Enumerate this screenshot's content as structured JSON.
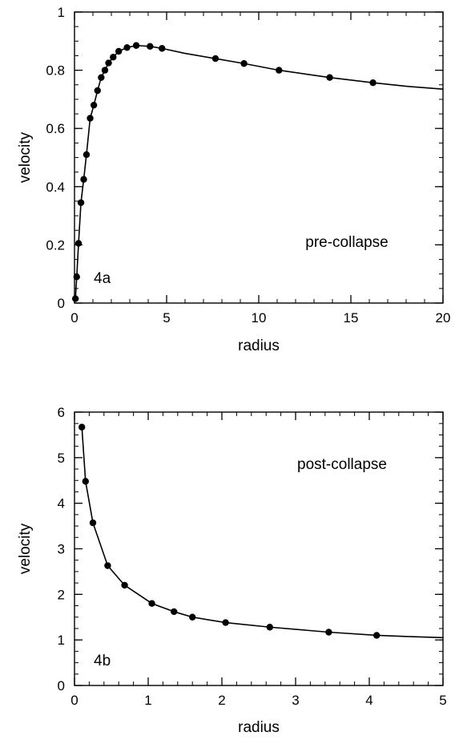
{
  "chart_data": [
    {
      "type": "scatter",
      "panel_label": "4a",
      "annotation": "pre-collapse",
      "xlabel": "radius",
      "ylabel": "velocity",
      "xlim": [
        0,
        20
      ],
      "ylim": [
        0,
        1
      ],
      "xticks": [
        0,
        5,
        10,
        15,
        20
      ],
      "yticks": [
        0,
        0.2,
        0.4,
        0.6,
        0.8,
        1
      ],
      "xtick_labels": [
        "0",
        "5",
        "10",
        "15",
        "20"
      ],
      "ytick_labels": [
        "0",
        "0.2",
        "0.4",
        "0.6",
        "0.8",
        "1"
      ],
      "series": [
        {
          "style": "points",
          "x": [
            0.05,
            0.12,
            0.22,
            0.35,
            0.5,
            0.65,
            0.85,
            1.05,
            1.25,
            1.45,
            1.65,
            1.85,
            2.1,
            2.4,
            2.85,
            3.35,
            4.1,
            4.75,
            7.65,
            9.2,
            11.1,
            13.85,
            16.2
          ],
          "y": [
            0.015,
            0.09,
            0.205,
            0.345,
            0.425,
            0.51,
            0.635,
            0.68,
            0.73,
            0.775,
            0.8,
            0.825,
            0.845,
            0.865,
            0.878,
            0.885,
            0.882,
            0.875,
            0.84,
            0.823,
            0.8,
            0.775,
            0.757
          ]
        },
        {
          "style": "line",
          "x": [
            0.05,
            0.12,
            0.22,
            0.35,
            0.5,
            0.65,
            0.85,
            1.05,
            1.25,
            1.45,
            1.65,
            1.85,
            2.1,
            2.4,
            2.85,
            3.35,
            4.1,
            4.75,
            6.0,
            7.65,
            9.2,
            11.1,
            13.85,
            16.2,
            18.0,
            20.0
          ],
          "y": [
            0.015,
            0.09,
            0.205,
            0.345,
            0.425,
            0.51,
            0.635,
            0.68,
            0.73,
            0.775,
            0.8,
            0.825,
            0.845,
            0.865,
            0.878,
            0.885,
            0.882,
            0.875,
            0.858,
            0.84,
            0.823,
            0.8,
            0.775,
            0.757,
            0.745,
            0.735
          ]
        }
      ]
    },
    {
      "type": "scatter",
      "panel_label": "4b",
      "annotation": "post-collapse",
      "xlabel": "radius",
      "ylabel": "velocity",
      "xlim": [
        0,
        5
      ],
      "ylim": [
        0,
        6
      ],
      "xticks": [
        0,
        1,
        2,
        3,
        4,
        5
      ],
      "yticks": [
        0,
        1,
        2,
        3,
        4,
        5,
        6
      ],
      "xtick_labels": [
        "0",
        "1",
        "2",
        "3",
        "4",
        "5"
      ],
      "ytick_labels": [
        "0",
        "1",
        "2",
        "3",
        "4",
        "5",
        "6"
      ],
      "series": [
        {
          "style": "points",
          "x": [
            0.1,
            0.15,
            0.25,
            0.45,
            0.68,
            1.05,
            1.35,
            1.6,
            2.05,
            2.65,
            3.45,
            4.1
          ],
          "y": [
            5.67,
            4.48,
            3.57,
            2.63,
            2.2,
            1.8,
            1.62,
            1.5,
            1.38,
            1.28,
            1.17,
            1.1
          ]
        },
        {
          "style": "line",
          "x": [
            0.1,
            0.15,
            0.25,
            0.45,
            0.68,
            1.05,
            1.35,
            1.6,
            2.05,
            2.65,
            3.45,
            4.1,
            4.6,
            5.0
          ],
          "y": [
            5.67,
            4.48,
            3.57,
            2.63,
            2.2,
            1.8,
            1.62,
            1.5,
            1.38,
            1.28,
            1.17,
            1.1,
            1.07,
            1.05
          ]
        }
      ]
    }
  ]
}
